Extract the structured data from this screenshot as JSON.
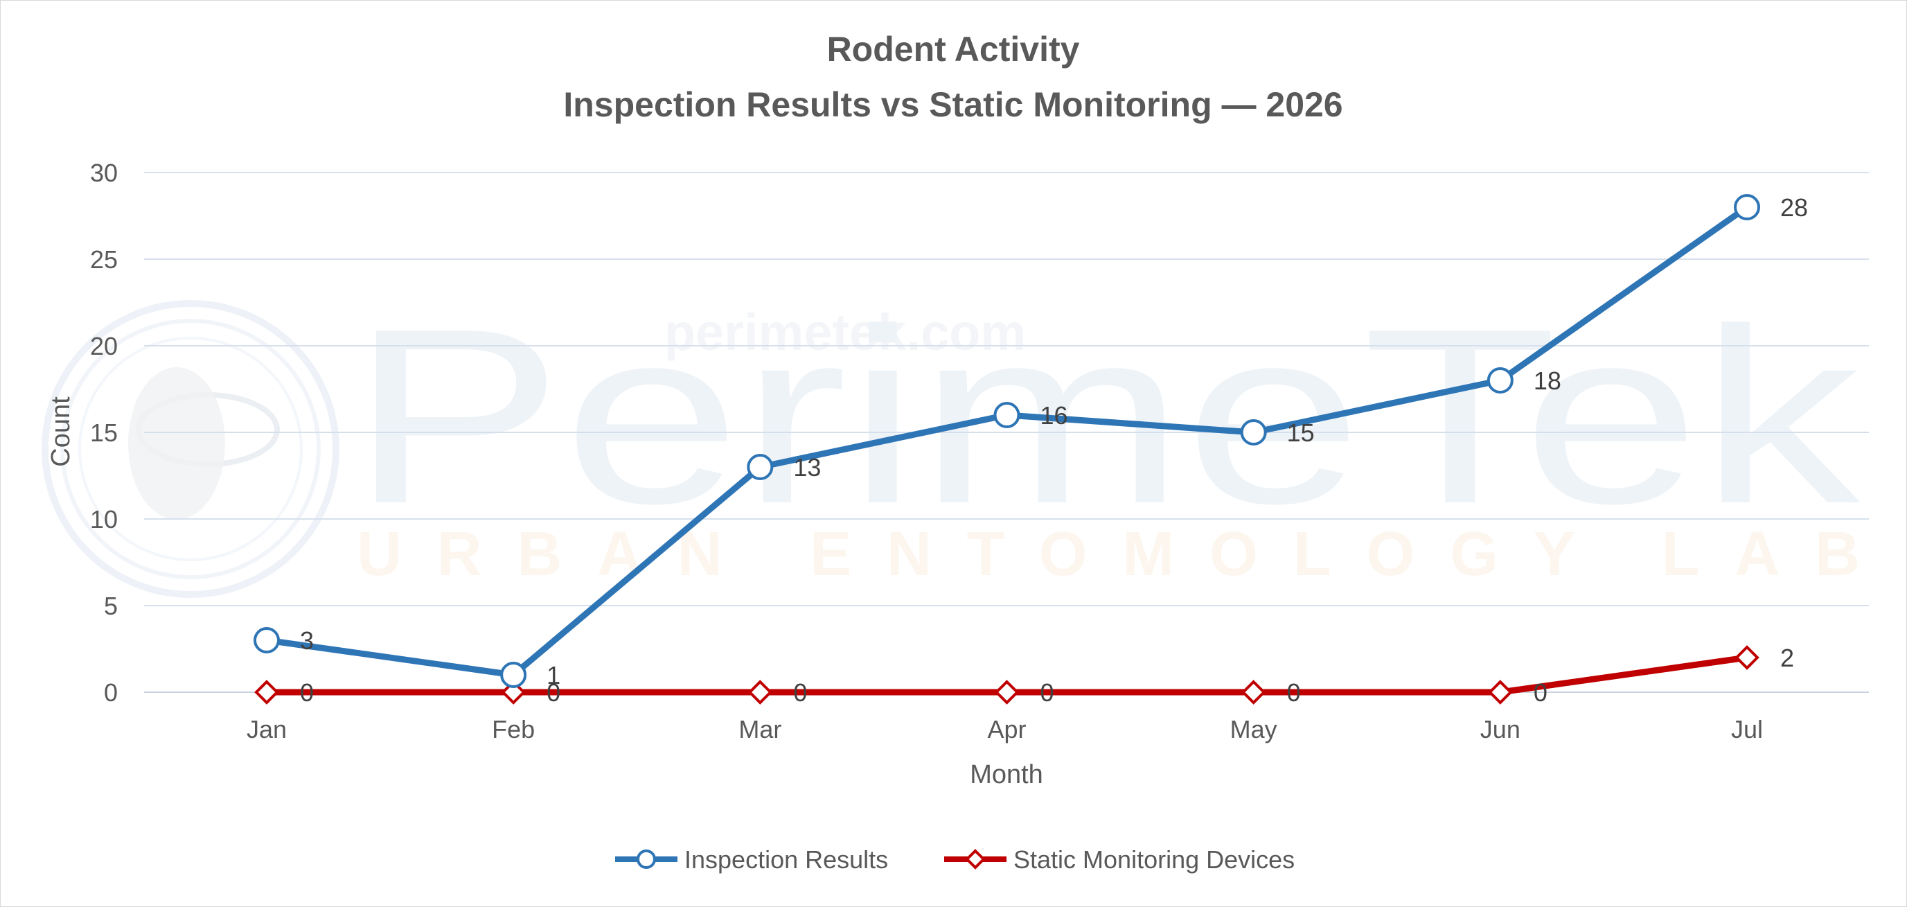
{
  "chart_data": {
    "type": "line",
    "title": "Rodent Activity",
    "subtitle": "Inspection Results vs Static Monitoring — 2026",
    "xlabel": "Month",
    "ylabel": "Count",
    "categories": [
      "Jan",
      "Feb",
      "Mar",
      "Apr",
      "May",
      "Jun",
      "Jul"
    ],
    "ylim": [
      0,
      30
    ],
    "yticks": [
      0,
      5,
      10,
      15,
      20,
      25,
      30
    ],
    "grid": true,
    "legend_position": "bottom",
    "series": [
      {
        "name": "Inspection Results",
        "values": [
          3,
          1,
          13,
          16,
          15,
          18,
          28
        ],
        "color": "#2E75B6",
        "marker": "circle"
      },
      {
        "name": "Static Monitoring Devices",
        "values": [
          0,
          0,
          0,
          0,
          0,
          0,
          2
        ],
        "color": "#C00000",
        "marker": "diamond"
      }
    ]
  },
  "watermark": {
    "brand": "PerimeTek",
    "tagline": "URBAN ENTOMOLOGY LAB",
    "url": "perimetek.com"
  }
}
